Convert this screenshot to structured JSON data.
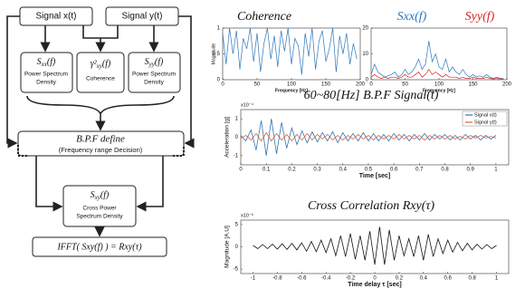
{
  "diagram": {
    "signal_x": "Signal x(t)",
    "signal_y": "Signal y(t)",
    "sxx": {
      "base": "S",
      "sub": "xx",
      "rest": "(f)",
      "label_1": "Power Spectrum",
      "label_2": "Density"
    },
    "coherence": {
      "base": "γ²",
      "sub": "xy",
      "rest": "(f)",
      "label": "Coherence"
    },
    "syy": {
      "base": "S",
      "sub": "yy",
      "rest": "(f)",
      "label_1": "Power Spectrum",
      "label_2": "Density"
    },
    "bpf": {
      "title": "B.P.F define",
      "subtitle": "(Frequency range Decision)"
    },
    "sxy": {
      "base": "S",
      "sub": "xy",
      "rest": "(f)",
      "label_1": "Cross Power",
      "label_2": "Spectrum Density"
    },
    "ifft": "IFFT( Sxy(f) ) = Rxy(τ)"
  },
  "chart_data": [
    {
      "type": "line",
      "title": "Coherence",
      "xlabel": "Frequency [Hz]",
      "ylabel": "Magnitude",
      "xlim": [
        0,
        200
      ],
      "ylim": [
        0,
        1
      ],
      "xticks": [
        0,
        50,
        100,
        150,
        200
      ],
      "yticks": [
        0,
        0.5,
        1
      ],
      "x": [
        0,
        5,
        10,
        15,
        20,
        25,
        30,
        35,
        40,
        45,
        50,
        55,
        60,
        65,
        70,
        75,
        80,
        85,
        90,
        95,
        100,
        105,
        110,
        115,
        120,
        125,
        130,
        135,
        140,
        145,
        150,
        155,
        160,
        165,
        170,
        175,
        180,
        185,
        190,
        195
      ],
      "series": [
        {
          "color": "#2e75b6",
          "values": [
            0.9,
            0.3,
            1,
            0.5,
            0.95,
            0.2,
            0.8,
            0.6,
            1,
            0.35,
            0.9,
            0.15,
            0.7,
            1,
            0.4,
            0.85,
            0.25,
            0.95,
            0.55,
            1,
            0.3,
            0.8,
            0.65,
            0.1,
            0.9,
            0.45,
            1,
            0.2,
            0.75,
            0.95,
            0.35,
            0.6,
            1,
            0.15,
            0.85,
            0.5,
            0.9,
            0.3,
            0.7,
            0.4
          ]
        }
      ]
    },
    {
      "type": "line",
      "legend": "above",
      "xlabel": "Frequency [Hz]",
      "xlim": [
        0,
        200
      ],
      "ylim": [
        0,
        20
      ],
      "xticks": [
        0,
        50,
        100,
        150,
        200
      ],
      "yticks": [
        0,
        10,
        20
      ],
      "x": [
        0,
        5,
        10,
        15,
        20,
        25,
        30,
        35,
        40,
        45,
        50,
        55,
        60,
        65,
        70,
        75,
        80,
        85,
        90,
        95,
        100,
        105,
        110,
        115,
        120,
        125,
        130,
        135,
        140,
        145,
        150,
        155,
        160,
        165,
        170,
        175,
        180,
        185,
        190,
        195
      ],
      "series": [
        {
          "name": "Sxx(f)",
          "color": "#2e75b6",
          "values": [
            2,
            6,
            3,
            2,
            1,
            1.5,
            2,
            3,
            1,
            2,
            4,
            2,
            3,
            5,
            8,
            4,
            6,
            15,
            7,
            10,
            5,
            4,
            8,
            3,
            5,
            3,
            2,
            4,
            2,
            1,
            2,
            1,
            1.5,
            1,
            2,
            1,
            0.5,
            1,
            0.5,
            0.5
          ]
        },
        {
          "name": "Syy(f)",
          "color": "#e02020",
          "values": [
            1,
            2,
            1,
            0.5,
            1,
            0.5,
            1,
            1,
            0.5,
            1,
            2,
            1,
            1,
            2,
            3,
            1,
            2,
            4,
            2,
            3,
            2,
            1,
            2,
            1,
            1,
            1,
            0.5,
            1,
            0.5,
            0.5,
            1,
            0.5,
            0.5,
            0.5,
            1,
            0.5,
            0.3,
            0.5,
            0.3,
            0.3
          ]
        }
      ]
    },
    {
      "type": "line",
      "title": "60~80[Hz] B.P.F Signal(t)",
      "legend": "upper right",
      "xlabel": "Time [sec]",
      "ylabel": "Acceleration [g]",
      "scale_label": "x10⁻⁴",
      "xlim": [
        0,
        1.05
      ],
      "ylim": [
        -1.5,
        1.5
      ],
      "xticks": [
        0,
        0.1,
        0.2,
        0.3,
        0.4,
        0.5,
        0.6,
        0.7,
        0.8,
        0.9,
        1
      ],
      "yticks": [
        -1,
        0,
        1
      ],
      "x": [
        0,
        0.02,
        0.04,
        0.06,
        0.08,
        0.1,
        0.12,
        0.14,
        0.16,
        0.18,
        0.2,
        0.22,
        0.24,
        0.26,
        0.28,
        0.3,
        0.32,
        0.34,
        0.36,
        0.38,
        0.4,
        0.42,
        0.44,
        0.46,
        0.48,
        0.5,
        0.52,
        0.54,
        0.56,
        0.58,
        0.6,
        0.62,
        0.64,
        0.66,
        0.68,
        0.7,
        0.72,
        0.74,
        0.76,
        0.78,
        0.8,
        0.82,
        0.84,
        0.86,
        0.88,
        0.9,
        0.92,
        0.94,
        0.96,
        0.98,
        1
      ],
      "series": [
        {
          "name": "Signal x(t)",
          "color": "#2e75b6",
          "values": [
            0.1,
            -0.2,
            0.4,
            -0.7,
            0.9,
            -1,
            1,
            -0.9,
            0.8,
            -0.6,
            0.5,
            -0.4,
            0.35,
            -0.3,
            0.3,
            -0.25,
            0.25,
            -0.2,
            0.3,
            -0.3,
            0.25,
            -0.2,
            0.2,
            -0.2,
            0.25,
            -0.2,
            0.2,
            -0.2,
            0.15,
            -0.2,
            0.2,
            -0.15,
            0.15,
            -0.2,
            0.15,
            -0.15,
            0.2,
            -0.15,
            0.15,
            -0.1,
            0.15,
            -0.15,
            0.1,
            -0.15,
            0.15,
            -0.1,
            0.1,
            -0.15,
            0.1,
            -0.1,
            0.1
          ]
        },
        {
          "name": "Signal y(t)",
          "color": "#e0603a",
          "values": [
            -0.05,
            0.1,
            -0.15,
            0.2,
            -0.2,
            0.25,
            -0.2,
            0.2,
            -0.15,
            0.15,
            -0.2,
            0.15,
            -0.15,
            0.2,
            -0.15,
            0.15,
            -0.1,
            0.15,
            -0.15,
            0.1,
            -0.15,
            0.1,
            -0.1,
            0.15,
            -0.1,
            0.1,
            -0.15,
            0.1,
            -0.1,
            0.1,
            -0.1,
            0.15,
            -0.1,
            0.1,
            -0.1,
            0.1,
            -0.15,
            0.1,
            -0.1,
            0.1,
            -0.1,
            0.1,
            -0.1,
            0.05,
            -0.1,
            0.1,
            -0.05,
            0.1,
            -0.05,
            0.05,
            -0.05
          ]
        }
      ]
    },
    {
      "type": "line",
      "title": "Cross Correlation Rxy(τ)",
      "xlabel": "Time delay τ [sec]",
      "ylabel": "Magnitude [A.U]",
      "scale_label": "x10⁻⁶",
      "xlim": [
        -1.1,
        1.1
      ],
      "ylim": [
        -6,
        6
      ],
      "xticks": [
        -1,
        -0.8,
        -0.6,
        -0.4,
        -0.2,
        0,
        0.2,
        0.4,
        0.6,
        0.8,
        1
      ],
      "yticks": [
        -5,
        0,
        5
      ],
      "x": [
        -1,
        -0.96,
        -0.92,
        -0.88,
        -0.84,
        -0.8,
        -0.76,
        -0.72,
        -0.68,
        -0.64,
        -0.6,
        -0.56,
        -0.52,
        -0.48,
        -0.44,
        -0.4,
        -0.36,
        -0.32,
        -0.28,
        -0.24,
        -0.2,
        -0.16,
        -0.12,
        -0.08,
        -0.04,
        0,
        0.04,
        0.08,
        0.12,
        0.16,
        0.2,
        0.24,
        0.28,
        0.32,
        0.36,
        0.4,
        0.44,
        0.48,
        0.52,
        0.56,
        0.6,
        0.64,
        0.68,
        0.72,
        0.76,
        0.8,
        0.84,
        0.88,
        0.92,
        0.96,
        1
      ],
      "series": [
        {
          "color": "#111111",
          "values": [
            0.3,
            -0.4,
            0.5,
            -0.4,
            0.6,
            -0.5,
            0.7,
            -0.6,
            0.8,
            -0.7,
            0.9,
            -1,
            1.2,
            -1.1,
            1.5,
            -1.3,
            1.8,
            -2,
            2.5,
            -2.2,
            3,
            -2.8,
            2.5,
            -3,
            3.5,
            -4,
            4.5,
            -4,
            3.8,
            -3,
            2.5,
            -2,
            1.8,
            -2.2,
            2.5,
            -3,
            2.8,
            -2.2,
            1.8,
            -1.5,
            1.5,
            -1.2,
            1,
            -0.9,
            0.8,
            -0.7,
            0.6,
            -0.5,
            0.5,
            -0.4,
            0.3
          ]
        }
      ]
    }
  ]
}
